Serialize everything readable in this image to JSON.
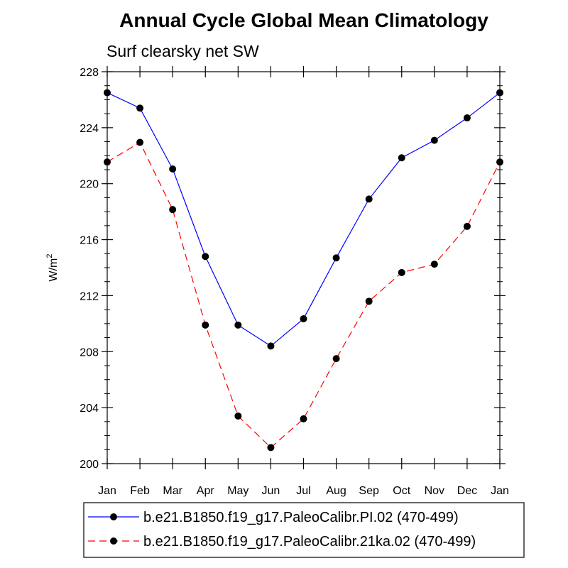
{
  "chart_data": {
    "type": "line",
    "title": "Annual Cycle Global Mean Climatology",
    "subtitle": "Surf clearsky net SW",
    "ylabel": "W/m",
    "ylabel_exponent": "2",
    "ylim": [
      200,
      228
    ],
    "yticks": [
      "200",
      "204",
      "208",
      "212",
      "216",
      "220",
      "224",
      "228"
    ],
    "categories": [
      "Jan",
      "Feb",
      "Mar",
      "Apr",
      "May",
      "Jun",
      "Jul",
      "Aug",
      "Sep",
      "Oct",
      "Nov",
      "Dec",
      "Jan"
    ],
    "series": [
      {
        "name": "b.e21.B1850.f19_g17.PaleoCalibr.PI.02 (470-499)",
        "color": "#0000ff",
        "dash": "solid",
        "values": [
          226.5,
          225.4,
          221.05,
          214.8,
          209.9,
          208.4,
          210.35,
          214.7,
          218.9,
          221.85,
          223.1,
          224.7,
          226.5
        ]
      },
      {
        "name": "b.e21.B1850.f19_g17.PaleoCalibr.21ka.02 (470-499)",
        "color": "#ff0000",
        "dash": "dashed",
        "values": [
          221.55,
          222.95,
          218.15,
          209.9,
          203.4,
          201.15,
          203.2,
          207.5,
          211.6,
          213.65,
          214.25,
          216.95,
          221.55
        ]
      }
    ]
  }
}
